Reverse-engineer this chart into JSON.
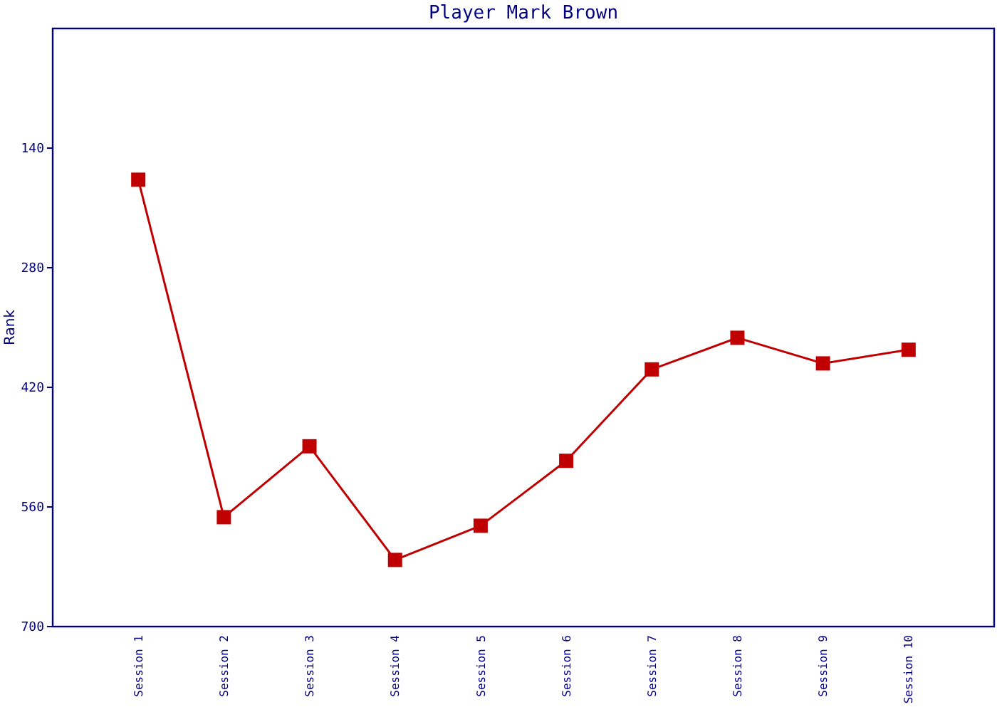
{
  "chart_data": {
    "type": "line",
    "title": "Player Mark Brown",
    "ylabel": "Rank",
    "categories": [
      "Session 1",
      "Session 2",
      "Session 3",
      "Session 4",
      "Session 5",
      "Session 6",
      "Session 7",
      "Session 8",
      "Session 9",
      "Session 10"
    ],
    "series": [
      {
        "color": "#c00000",
        "values": [
          177,
          572,
          489,
          622,
          582,
          506,
          399,
          362,
          392,
          376
        ]
      }
    ],
    "ylim": [
      700,
      0
    ],
    "yticks": [
      140,
      280,
      420,
      560,
      700
    ],
    "marker": "square",
    "grid": false
  }
}
